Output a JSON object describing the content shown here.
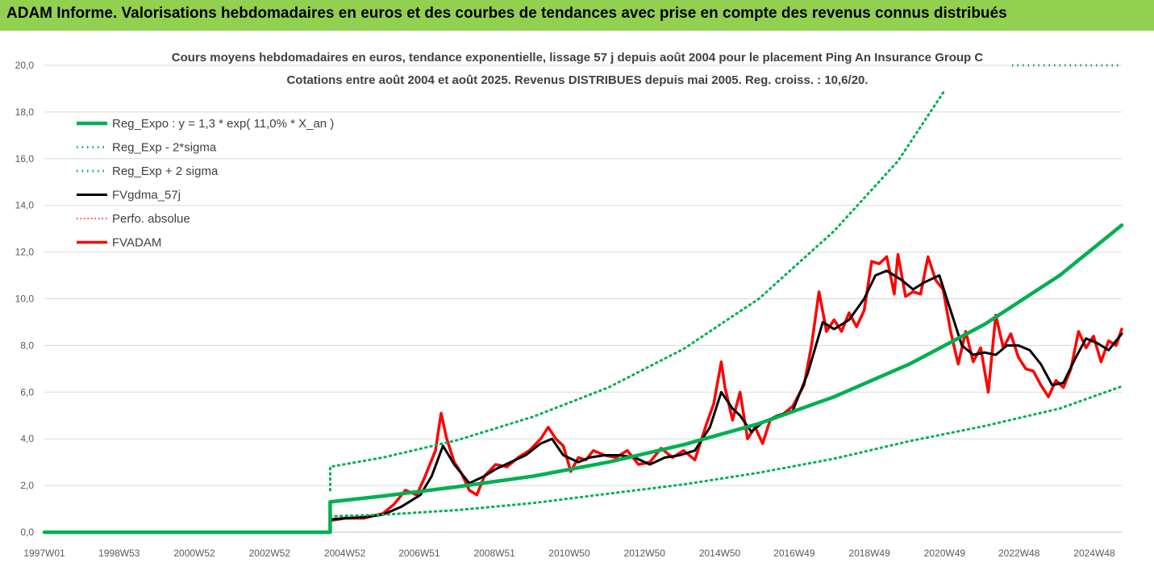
{
  "banner": {
    "title": "ADAM Informe. Valorisations hebdomadaires en euros et des courbes de tendances avec prise en compte des revenus connus distribués"
  },
  "colors": {
    "banner_bg": "#92d050",
    "reg_expo": "#00b050",
    "sigma": "#00b050",
    "fvgdma": "#000000",
    "perfo": "#ff0000",
    "fvadam": "#ff0000",
    "grid": "#d9d9d9"
  },
  "chart_data": {
    "type": "line",
    "title": "Cours moyens hebdomadaires en euros, tendance exponentielle, lissage 57 j depuis août 2004 pour le placement Ping An Insurance Group C",
    "subtitle": "Cotations entre août 2004 et août 2025. Revenus DISTRIBUES depuis mai 2005. Reg. croiss. : 10,6/20.",
    "xlabel": "",
    "ylabel": "",
    "ylim": [
      0,
      20
    ],
    "xlim": [
      1997.0,
      2025.65
    ],
    "yticks": [
      "0,0",
      "2,0",
      "4,0",
      "6,0",
      "8,0",
      "10,0",
      "12,0",
      "14,0",
      "16,0",
      "18,0",
      "20,0"
    ],
    "xticks": [
      {
        "label": "1997W01",
        "x": 1997.0
      },
      {
        "label": "1998W53",
        "x": 1998.99
      },
      {
        "label": "2000W52",
        "x": 2000.99
      },
      {
        "label": "2002W52",
        "x": 2002.99
      },
      {
        "label": "2004W52",
        "x": 2004.99
      },
      {
        "label": "2006W51",
        "x": 2006.97
      },
      {
        "label": "2008W51",
        "x": 2008.97
      },
      {
        "label": "2010W50",
        "x": 2010.96
      },
      {
        "label": "2012W50",
        "x": 2012.96
      },
      {
        "label": "2014W50",
        "x": 2014.96
      },
      {
        "label": "2016W49",
        "x": 2016.94
      },
      {
        "label": "2018W49",
        "x": 2018.94
      },
      {
        "label": "2020W49",
        "x": 2020.94
      },
      {
        "label": "2022W48",
        "x": 2022.92
      },
      {
        "label": "2024W48",
        "x": 2024.92
      }
    ],
    "grid": "horizontal",
    "legend_position": "top-left",
    "series": [
      {
        "name": "Reg_Expo : y = 1,3 * exp( 11,0% *  X_an )",
        "style": "solid-thick",
        "x": [
          1997.0,
          2004.6,
          2004.6,
          2006,
          2008,
          2010,
          2012,
          2014,
          2016,
          2018,
          2020,
          2022,
          2024,
          2025.65
        ],
        "values": [
          0,
          0,
          1.3,
          1.55,
          1.95,
          2.4,
          3.0,
          3.75,
          4.65,
          5.8,
          7.2,
          8.9,
          11.0,
          13.15
        ]
      },
      {
        "name": "Reg_Exp - 2*sigma",
        "style": "dotted",
        "x": [
          2004.6,
          2006,
          2008,
          2010,
          2012,
          2014,
          2016,
          2018,
          2020,
          2022,
          2024,
          2025.65
        ],
        "values": [
          0.68,
          0.75,
          0.95,
          1.25,
          1.65,
          2.05,
          2.55,
          3.15,
          3.9,
          4.55,
          5.3,
          6.25
        ]
      },
      {
        "name": "Reg_Exp + 2 sigma",
        "style": "dotted",
        "x": [
          2004.6,
          2004.6,
          2006,
          2008,
          2010,
          2012,
          2014,
          2016,
          2018,
          2019.7,
          2020.95
        ],
        "values": [
          1.8,
          2.8,
          3.2,
          3.95,
          4.95,
          6.2,
          7.85,
          10.0,
          12.9,
          15.9,
          18.95
        ]
      },
      {
        "name": "FVgdma_57j",
        "style": "solid",
        "x": [
          2004.6,
          2005.0,
          2005.5,
          2006.0,
          2006.5,
          2007.0,
          2007.3,
          2007.6,
          2007.9,
          2008.3,
          2008.7,
          2009.0,
          2009.4,
          2009.8,
          2010.2,
          2010.5,
          2010.8,
          2011.2,
          2011.5,
          2011.9,
          2012.3,
          2012.7,
          2013.1,
          2013.5,
          2013.9,
          2014.3,
          2014.7,
          2015.0,
          2015.3,
          2015.5,
          2015.8,
          2016.1,
          2016.5,
          2016.9,
          2017.3,
          2017.7,
          2018.0,
          2018.4,
          2018.8,
          2019.1,
          2019.4,
          2019.8,
          2020.1,
          2020.4,
          2020.8,
          2021.1,
          2021.4,
          2021.7,
          2022.0,
          2022.3,
          2022.6,
          2022.9,
          2023.2,
          2023.5,
          2023.8,
          2024.1,
          2024.4,
          2024.7,
          2025.0,
          2025.3,
          2025.65
        ],
        "values": [
          0.55,
          0.6,
          0.65,
          0.75,
          1.1,
          1.6,
          2.4,
          3.7,
          2.9,
          2.1,
          2.4,
          2.7,
          3.0,
          3.3,
          3.8,
          4.0,
          3.3,
          3.0,
          3.2,
          3.3,
          3.3,
          3.2,
          2.9,
          3.2,
          3.3,
          3.5,
          4.5,
          6.0,
          5.3,
          5.0,
          4.3,
          4.7,
          5.0,
          5.2,
          6.8,
          9.0,
          8.7,
          9.1,
          10.0,
          11.0,
          11.2,
          10.8,
          10.4,
          10.7,
          11.0,
          9.5,
          8.0,
          7.6,
          7.7,
          7.6,
          8.0,
          8.0,
          7.8,
          7.2,
          6.3,
          6.4,
          7.4,
          8.3,
          8.1,
          7.8,
          8.5
        ]
      },
      {
        "name": "Perfo. absolue",
        "style": "dotted",
        "x": [
          2004.6,
          2005.0,
          2005.5,
          2006.0,
          2006.5,
          2007.0,
          2007.3,
          2007.6,
          2007.9,
          2008.3,
          2008.7,
          2009.0,
          2009.4,
          2009.8,
          2010.2,
          2010.5,
          2010.8,
          2011.2,
          2011.5,
          2011.9,
          2012.3,
          2012.7,
          2013.1,
          2013.5,
          2013.9,
          2014.3,
          2014.7,
          2015.0,
          2015.3,
          2015.5,
          2015.8,
          2016.1,
          2016.5,
          2016.9,
          2017.3,
          2017.7,
          2018.0,
          2018.4,
          2018.8,
          2019.1,
          2019.4,
          2019.8,
          2020.1,
          2020.4,
          2020.8,
          2021.1,
          2021.4,
          2021.7,
          2022.0,
          2022.3,
          2022.6,
          2022.9,
          2023.2,
          2023.5,
          2023.8,
          2024.1,
          2024.4,
          2024.7,
          2025.0,
          2025.3,
          2025.65
        ],
        "values": [
          0.55,
          0.6,
          0.65,
          0.75,
          1.1,
          1.6,
          2.4,
          3.7,
          2.9,
          2.1,
          2.4,
          2.7,
          3.0,
          3.3,
          3.8,
          4.0,
          3.3,
          3.0,
          3.2,
          3.3,
          3.3,
          3.2,
          2.9,
          3.2,
          3.3,
          3.5,
          4.5,
          6.0,
          5.3,
          5.0,
          4.3,
          4.7,
          5.0,
          5.2,
          6.8,
          9.0,
          8.7,
          9.1,
          10.0,
          11.0,
          11.2,
          10.8,
          10.4,
          10.7,
          11.0,
          9.5,
          8.0,
          7.6,
          7.7,
          7.6,
          8.0,
          8.0,
          7.8,
          7.2,
          6.3,
          6.4,
          7.4,
          8.3,
          8.1,
          7.8,
          8.5
        ]
      },
      {
        "name": "FVADAM",
        "style": "solid-thick",
        "x": [
          1997.0,
          2004.6,
          2004.6,
          2005.0,
          2005.5,
          2006.0,
          2006.3,
          2006.6,
          2006.9,
          2007.1,
          2007.4,
          2007.55,
          2007.7,
          2007.9,
          2008.1,
          2008.3,
          2008.5,
          2008.7,
          2009.0,
          2009.3,
          2009.6,
          2009.9,
          2010.2,
          2010.4,
          2010.6,
          2010.8,
          2011.0,
          2011.2,
          2011.4,
          2011.6,
          2011.9,
          2012.2,
          2012.5,
          2012.8,
          2013.1,
          2013.4,
          2013.7,
          2014.0,
          2014.3,
          2014.6,
          2014.8,
          2015.0,
          2015.1,
          2015.3,
          2015.5,
          2015.7,
          2015.9,
          2016.1,
          2016.3,
          2016.6,
          2016.9,
          2017.2,
          2017.4,
          2017.6,
          2017.8,
          2018.0,
          2018.2,
          2018.4,
          2018.6,
          2018.8,
          2019.0,
          2019.2,
          2019.4,
          2019.6,
          2019.7,
          2019.9,
          2020.1,
          2020.3,
          2020.5,
          2020.7,
          2020.9,
          2021.1,
          2021.3,
          2021.5,
          2021.7,
          2021.9,
          2022.1,
          2022.3,
          2022.5,
          2022.7,
          2022.9,
          2023.1,
          2023.3,
          2023.5,
          2023.7,
          2023.9,
          2024.1,
          2024.3,
          2024.5,
          2024.7,
          2024.9,
          2025.1,
          2025.3,
          2025.5,
          2025.65
        ],
        "values": [
          0,
          0,
          0.5,
          0.6,
          0.6,
          0.8,
          1.2,
          1.8,
          1.6,
          2.3,
          3.5,
          5.1,
          4.0,
          3.0,
          2.5,
          1.8,
          1.6,
          2.4,
          2.9,
          2.8,
          3.2,
          3.5,
          4.0,
          4.5,
          4.0,
          3.7,
          2.6,
          3.2,
          3.1,
          3.5,
          3.3,
          3.2,
          3.5,
          2.9,
          3.0,
          3.6,
          3.2,
          3.5,
          3.1,
          4.6,
          5.5,
          7.3,
          6.2,
          4.8,
          6.0,
          4.0,
          4.5,
          3.8,
          4.8,
          5.0,
          5.4,
          6.3,
          8.0,
          10.3,
          8.6,
          9.1,
          8.6,
          9.4,
          8.8,
          9.5,
          11.6,
          11.5,
          11.8,
          10.2,
          11.9,
          10.1,
          10.3,
          10.2,
          11.8,
          10.8,
          10.4,
          8.6,
          7.2,
          8.6,
          7.3,
          7.9,
          6.0,
          9.3,
          7.9,
          8.5,
          7.5,
          7.0,
          6.9,
          6.3,
          5.8,
          6.5,
          6.2,
          7.0,
          8.6,
          7.9,
          8.4,
          7.3,
          8.2,
          8.0,
          8.7
        ]
      }
    ]
  }
}
